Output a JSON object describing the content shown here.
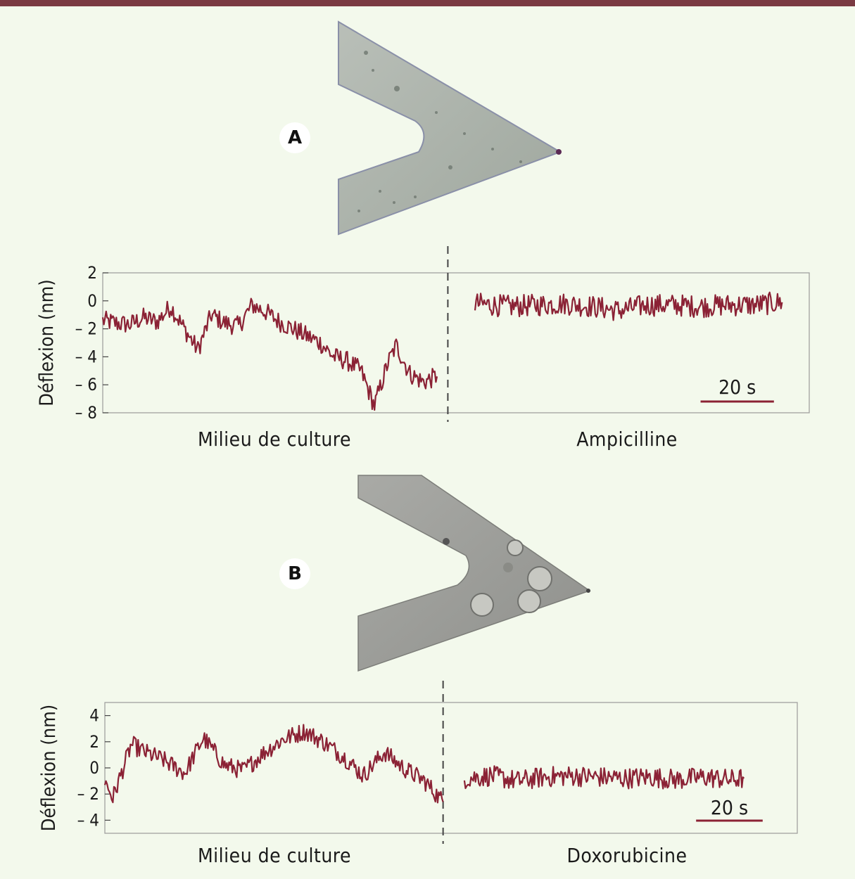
{
  "theme": {
    "accent": "#8b2235",
    "top_bar": "#7a3a42",
    "background": "#f3f9ec"
  },
  "panels": [
    {
      "badge": "A",
      "photo": "v-shaped-cantilever-with-bacteria",
      "left_label": "Milieu de culture",
      "right_label": "Ampicilline"
    },
    {
      "badge": "B",
      "photo": "v-shaped-cantilever-with-cells",
      "left_label": "Milieu de culture",
      "right_label": "Doxorubicine"
    }
  ],
  "chart_data": [
    {
      "type": "line",
      "ylabel": "Déflexion (nm)",
      "ylim": [
        -8,
        2
      ],
      "yticks": [
        {
          "v": 2,
          "label": "2"
        },
        {
          "v": 0,
          "label": "0"
        },
        {
          "v": -2,
          "label": "– 2"
        },
        {
          "v": -4,
          "label": "– 4"
        },
        {
          "v": -6,
          "label": "– 6"
        },
        {
          "v": -8,
          "label": "– 8"
        }
      ],
      "xlim": [
        0,
        260
      ],
      "divider_x": 127,
      "scalebar": {
        "label": "20 s",
        "x_start": 220,
        "x_end": 247
      },
      "series": [
        {
          "x": [
            0,
            5,
            10,
            15,
            20,
            25,
            30,
            35,
            40,
            45,
            50,
            55,
            60,
            65,
            70,
            75,
            80,
            85,
            90,
            95,
            100,
            105,
            108,
            113,
            118,
            123
          ],
          "y": [
            -1.4,
            -1.6,
            -1.7,
            -1.2,
            -1.5,
            -0.4,
            -2.0,
            -3.5,
            -1.0,
            -1.6,
            -1.8,
            -0.3,
            -0.8,
            -1.5,
            -2.0,
            -2.5,
            -3.0,
            -4.0,
            -4.3,
            -5.0,
            -7.5,
            -4.4,
            -3.2,
            -5.2,
            -5.8,
            -5.4
          ],
          "noise": 0.7
        },
        {
          "x": [
            137,
            150,
            160,
            170,
            180,
            190,
            200,
            210,
            220,
            230,
            240,
            250
          ],
          "y": [
            -0.2,
            -0.4,
            -0.3,
            -0.2,
            -0.4,
            -0.7,
            -0.3,
            -0.3,
            -0.4,
            -0.3,
            -0.3,
            -0.1
          ],
          "noise": 0.8
        }
      ]
    },
    {
      "type": "line",
      "ylabel": "Déflexion (nm)",
      "ylim": [
        -5,
        5
      ],
      "yticks": [
        {
          "v": 4,
          "label": "4"
        },
        {
          "v": 2,
          "label": "2"
        },
        {
          "v": 0,
          "label": "0"
        },
        {
          "v": -2,
          "label": "– 2"
        },
        {
          "v": -4,
          "label": "– 4"
        }
      ],
      "xlim": [
        0,
        260
      ],
      "divider_x": 127,
      "scalebar": {
        "label": "20 s",
        "x_start": 222,
        "x_end": 247
      },
      "series": [
        {
          "x": [
            0,
            3,
            10,
            15,
            22,
            30,
            37,
            45,
            52,
            60,
            67,
            75,
            82,
            90,
            97,
            105,
            112,
            120,
            127
          ],
          "y": [
            -1.0,
            -2.3,
            1.8,
            1.2,
            0.6,
            -0.4,
            2.3,
            0.2,
            -0.2,
            1.2,
            2.2,
            2.8,
            2.0,
            0.8,
            -0.6,
            1.2,
            0.0,
            -1.0,
            -2.6
          ],
          "noise": 0.7
        },
        {
          "x": [
            135,
            145,
            155,
            165,
            175,
            185,
            195,
            205,
            215,
            225,
            235,
            240
          ],
          "y": [
            -0.8,
            -0.6,
            -1.0,
            -0.7,
            -0.6,
            -0.7,
            -0.8,
            -0.7,
            -0.9,
            -0.7,
            -0.9,
            -0.8
          ],
          "noise": 0.8
        }
      ]
    }
  ]
}
